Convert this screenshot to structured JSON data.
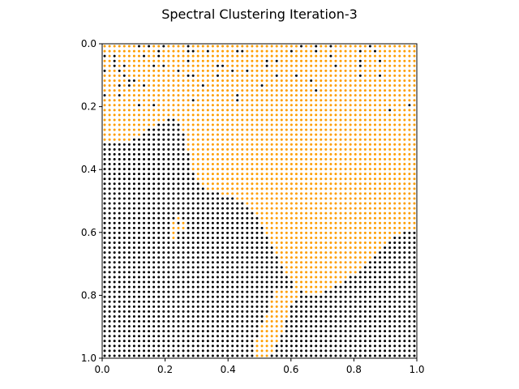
{
  "chart_data": {
    "type": "scatter",
    "title": "Spectral Clustering Iteration-3",
    "xlabel": "",
    "ylabel": "",
    "xlim": [
      0.0,
      1.0
    ],
    "ylim": [
      1.0,
      0.0
    ],
    "y_axis_inverted": true,
    "grid": false,
    "legend": "none",
    "x_ticks": [
      "0.0",
      "0.2",
      "0.4",
      "0.6",
      "0.8",
      "1.0"
    ],
    "y_ticks": [
      "0.0",
      "0.2",
      "0.4",
      "0.6",
      "0.8",
      "1.0"
    ],
    "grid_resolution": 64,
    "series": [
      {
        "color": "#ff9e00",
        "description": "cluster A (orange): top region and the central peninsula reaching the bottom edge near x≈0.5"
      },
      {
        "color": "#000000",
        "description": "cluster B (black): lower-left and lower-right regions, plus scattered points in the top band"
      }
    ],
    "boundary": {
      "left_top_y": [
        [
          0.0,
          0.315
        ],
        [
          0.06,
          0.32
        ],
        [
          0.1,
          0.3
        ],
        [
          0.15,
          0.27
        ],
        [
          0.2,
          0.24
        ],
        [
          0.23,
          0.225
        ],
        [
          0.25,
          0.26
        ],
        [
          0.27,
          0.33
        ],
        [
          0.29,
          0.41
        ],
        [
          0.32,
          0.46
        ],
        [
          0.38,
          0.48
        ],
        [
          0.44,
          0.5
        ],
        [
          0.5,
          0.56
        ],
        [
          0.55,
          0.67
        ],
        [
          0.59,
          0.74
        ],
        [
          0.62,
          0.78
        ],
        [
          0.68,
          0.8
        ],
        [
          0.75,
          0.77
        ],
        [
          0.82,
          0.72
        ],
        [
          0.88,
          0.66
        ],
        [
          0.93,
          0.61
        ],
        [
          1.0,
          0.585
        ]
      ],
      "peninsula_right_x": [
        [
          0.8,
          0.62
        ],
        [
          0.85,
          0.59
        ],
        [
          0.9,
          0.58
        ],
        [
          0.95,
          0.555
        ],
        [
          1.0,
          0.53
        ]
      ],
      "peninsula_left_x": [
        [
          0.8,
          0.545
        ],
        [
          0.85,
          0.53
        ],
        [
          0.9,
          0.505
        ],
        [
          0.95,
          0.49
        ],
        [
          1.0,
          0.48
        ]
      ],
      "inner_orange_patch": {
        "x": [
          0.22,
          0.265
        ],
        "y": [
          0.54,
          0.63
        ]
      },
      "black_speckle_band_y": [
        0.0,
        0.25
      ]
    }
  }
}
